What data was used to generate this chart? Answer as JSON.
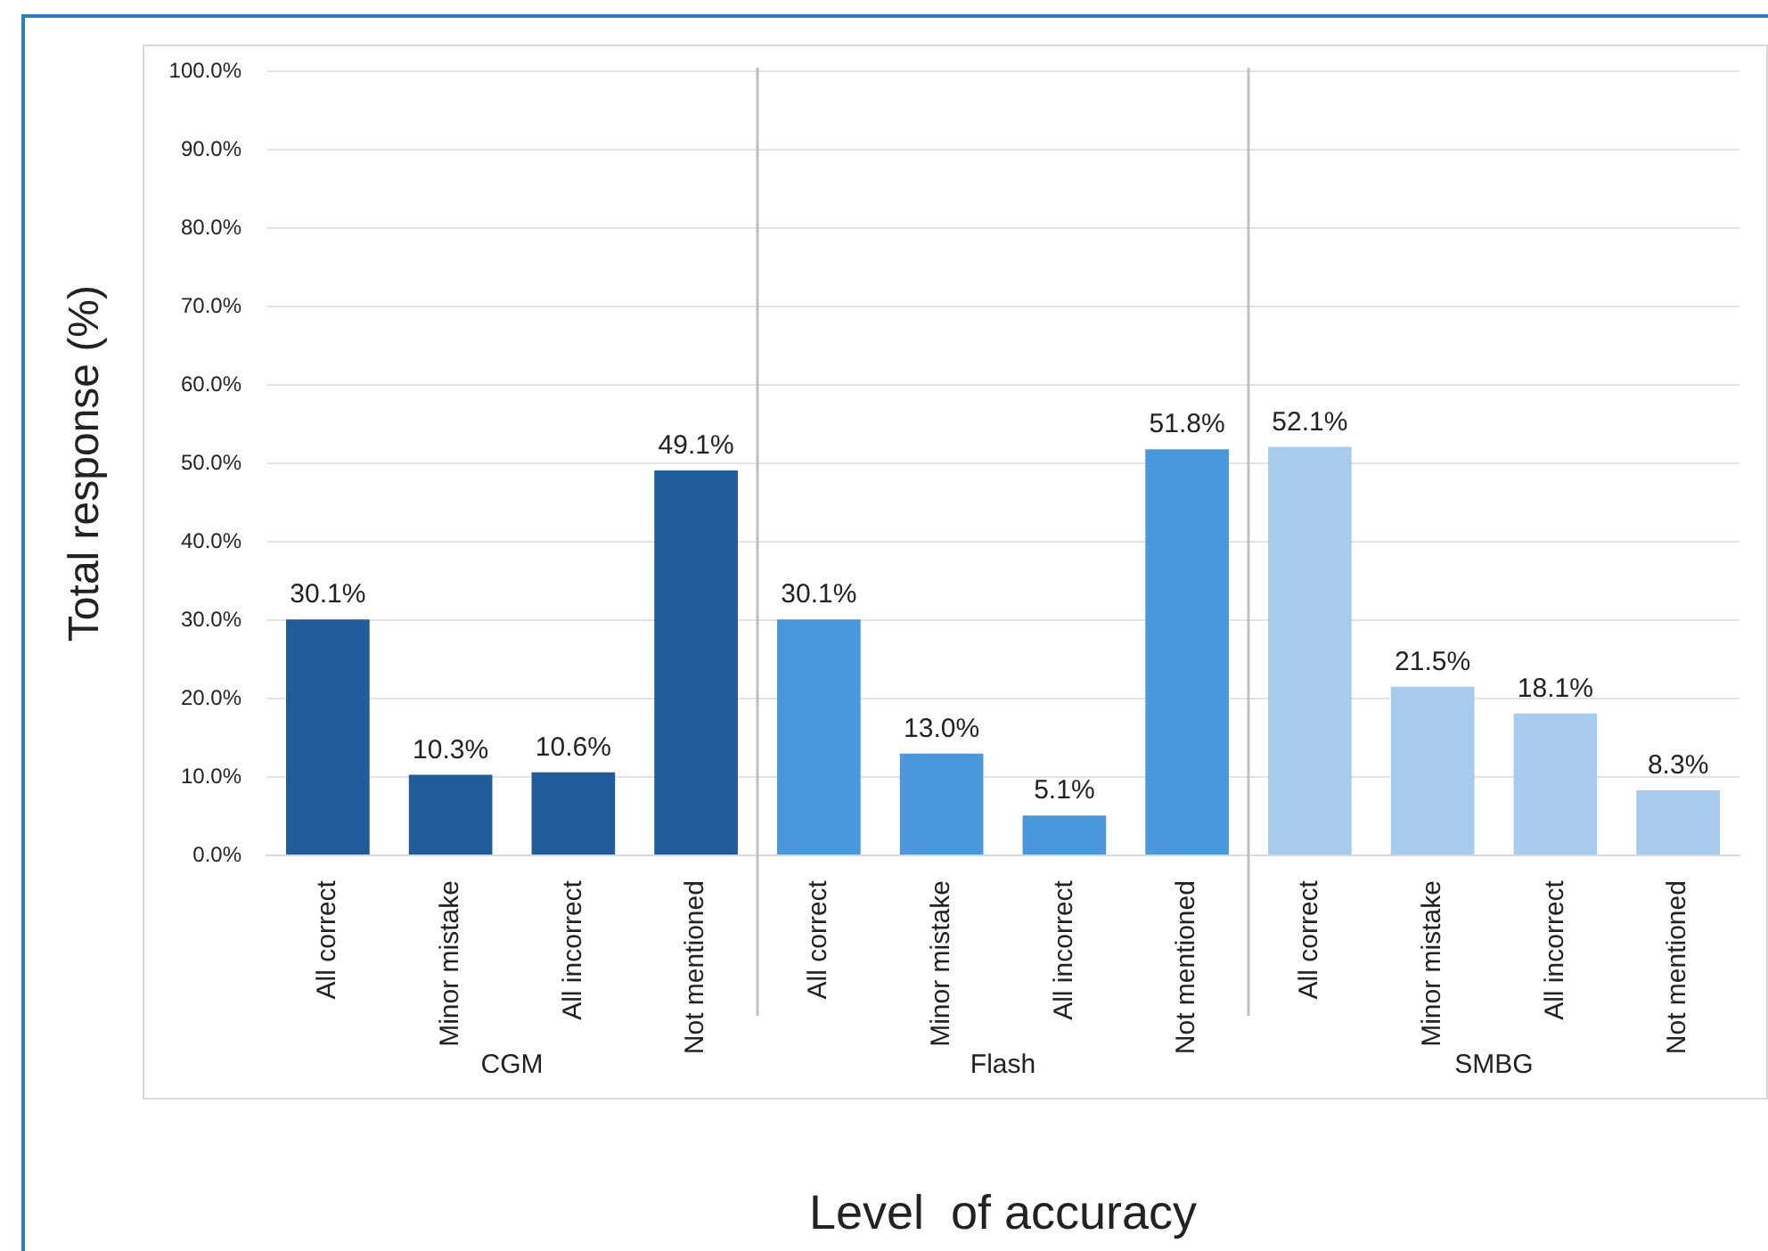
{
  "chart_data": {
    "type": "bar",
    "xlabel": "Level  of accuracy",
    "ylabel": "Total response (%)",
    "categories": [
      "All correct",
      "Minor mistake",
      "All incorrect",
      "Not mentioned",
      "All correct",
      "Minor mistake",
      "All incorrect",
      "Not mentioned",
      "All correct",
      "Minor mistake",
      "All incorrect",
      "Not mentioned"
    ],
    "series": [
      {
        "color": "#1f5c99",
        "values": [
          30.1,
          10.3,
          10.6,
          49.1,
          null,
          null,
          null,
          null,
          null,
          null,
          null,
          null
        ],
        "value_labels": [
          "30.1%",
          "10.3%",
          "10.6%",
          "49.1%",
          null,
          null,
          null,
          null,
          null,
          null,
          null,
          null
        ]
      },
      {
        "color": "#4a97dc",
        "values": [
          null,
          null,
          null,
          null,
          30.1,
          13.0,
          5.1,
          51.8,
          null,
          null,
          null,
          null
        ],
        "value_labels": [
          null,
          null,
          null,
          null,
          "30.1%",
          "13.0%",
          "5.1%",
          "51.8%",
          null,
          null,
          null,
          null
        ]
      },
      {
        "color": "#a7cbed",
        "values": [
          null,
          null,
          null,
          null,
          null,
          null,
          null,
          null,
          52.1,
          21.5,
          18.1,
          8.3
        ],
        "value_labels": [
          null,
          null,
          null,
          null,
          null,
          null,
          null,
          null,
          "52.1%",
          "21.5%",
          "18.1%",
          "8.3%"
        ]
      }
    ],
    "ylim": [
      0,
      100
    ],
    "yticks": [
      {
        "value": 0,
        "label": "0.0%"
      },
      {
        "value": 10,
        "label": "10.0%"
      },
      {
        "value": 20,
        "label": "20.0%"
      },
      {
        "value": 30,
        "label": "30.0%"
      },
      {
        "value": 40,
        "label": "40.0%"
      },
      {
        "value": 50,
        "label": "50.0%"
      },
      {
        "value": 60,
        "label": "60.0%"
      },
      {
        "value": 70,
        "label": "70.0%"
      },
      {
        "value": 80,
        "label": "80.0%"
      },
      {
        "value": 90,
        "label": "90.0%"
      },
      {
        "value": 100,
        "label": "100.0%"
      }
    ],
    "annotations": [
      "CGM",
      "Flash",
      "SMBG"
    ],
    "grid": "y",
    "legend": false
  }
}
